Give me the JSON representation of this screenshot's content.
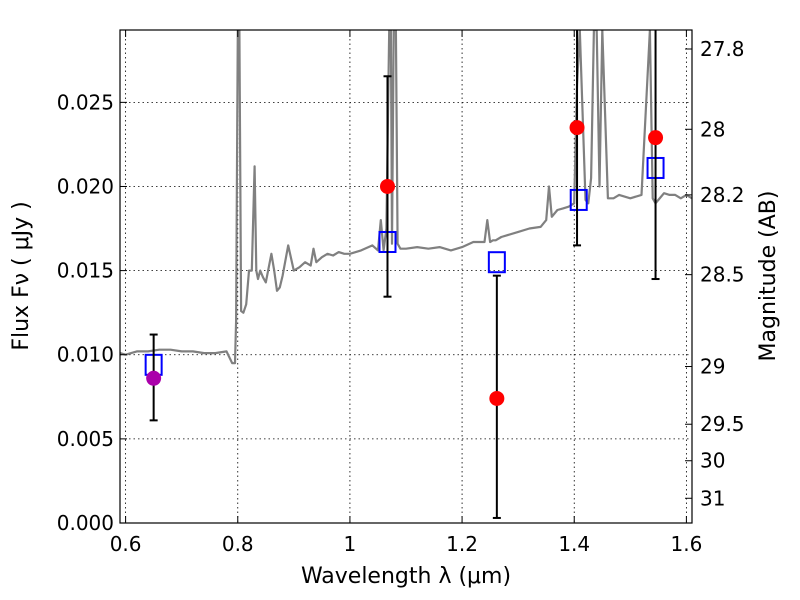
{
  "chart_data": {
    "type": "scatter",
    "xlabel": "Wavelength  λ (μm)",
    "ylabel": "Flux  Fν  ( μJy )",
    "y2label": "Magnitude (AB)",
    "xlim": [
      0.59,
      1.61
    ],
    "ylim": [
      0.0,
      0.0293
    ],
    "grid": true,
    "x_ticks": [
      {
        "value": 0.6,
        "label": "0.6"
      },
      {
        "value": 0.8,
        "label": "0.8"
      },
      {
        "value": 1.0,
        "label": "1"
      },
      {
        "value": 1.2,
        "label": "1.2"
      },
      {
        "value": 1.4,
        "label": "1.4"
      },
      {
        "value": 1.6,
        "label": "1.6"
      }
    ],
    "y_ticks": [
      {
        "value": 0.0,
        "label": "0.000"
      },
      {
        "value": 0.005,
        "label": "0.005"
      },
      {
        "value": 0.01,
        "label": "0.010"
      },
      {
        "value": 0.015,
        "label": "0.015"
      },
      {
        "value": 0.02,
        "label": "0.020"
      },
      {
        "value": 0.025,
        "label": "0.025"
      }
    ],
    "y2_ticks": [
      {
        "flux": 0.02817,
        "label": "27.8"
      },
      {
        "flux": 0.0234,
        "label": "28"
      },
      {
        "flux": 0.0195,
        "label": "28.2"
      },
      {
        "flux": 0.01476,
        "label": "28.5"
      },
      {
        "flux": 0.0093,
        "label": "29"
      },
      {
        "flux": 0.00587,
        "label": "29.5"
      },
      {
        "flux": 0.0037,
        "label": "30"
      },
      {
        "flux": 0.00147,
        "label": "31"
      }
    ],
    "series": [
      {
        "kind": "line",
        "color": "#808080",
        "x": [
          0.59,
          0.6,
          0.61,
          0.62,
          0.64,
          0.66,
          0.68,
          0.7,
          0.72,
          0.74,
          0.76,
          0.78,
          0.79,
          0.795,
          0.797,
          0.8,
          0.803,
          0.806,
          0.81,
          0.815,
          0.82,
          0.825,
          0.83,
          0.833,
          0.836,
          0.84,
          0.845,
          0.85,
          0.86,
          0.865,
          0.87,
          0.875,
          0.88,
          0.89,
          0.9,
          0.91,
          0.92,
          0.93,
          0.935,
          0.94,
          0.95,
          0.96,
          0.97,
          0.98,
          0.99,
          1.0,
          1.02,
          1.04,
          1.05,
          1.055,
          1.06,
          1.065,
          1.07,
          1.073,
          1.075,
          1.078,
          1.082,
          1.085,
          1.09,
          1.1,
          1.12,
          1.14,
          1.16,
          1.18,
          1.2,
          1.22,
          1.24,
          1.245,
          1.25,
          1.255,
          1.26,
          1.27,
          1.28,
          1.3,
          1.32,
          1.34,
          1.35,
          1.355,
          1.36,
          1.37,
          1.38,
          1.39,
          1.4,
          1.405,
          1.41,
          1.42,
          1.425,
          1.43,
          1.435,
          1.44,
          1.445,
          1.45,
          1.46,
          1.47,
          1.48,
          1.5,
          1.52,
          1.535,
          1.54,
          1.545,
          1.55,
          1.56,
          1.57,
          1.58,
          1.59,
          1.6,
          1.61
        ],
        "y": [
          0.0101,
          0.01,
          0.0101,
          0.0102,
          0.0102,
          0.0103,
          0.0103,
          0.0102,
          0.0102,
          0.0101,
          0.0101,
          0.0102,
          0.0095,
          0.0095,
          0.012,
          0.0293,
          0.0293,
          0.0126,
          0.0125,
          0.013,
          0.015,
          0.015,
          0.0212,
          0.015,
          0.0145,
          0.015,
          0.0146,
          0.0143,
          0.016,
          0.015,
          0.0138,
          0.014,
          0.0147,
          0.0165,
          0.015,
          0.0152,
          0.0155,
          0.0153,
          0.0163,
          0.0155,
          0.0158,
          0.016,
          0.0159,
          0.0161,
          0.016,
          0.016,
          0.0162,
          0.0165,
          0.0162,
          0.018,
          0.0162,
          0.0175,
          0.0293,
          0.0293,
          0.0166,
          0.0293,
          0.0293,
          0.0166,
          0.0163,
          0.0163,
          0.0164,
          0.0163,
          0.0164,
          0.0162,
          0.0164,
          0.0167,
          0.0167,
          0.018,
          0.0167,
          0.0168,
          0.0168,
          0.017,
          0.0171,
          0.0173,
          0.0175,
          0.0176,
          0.018,
          0.02,
          0.0182,
          0.0186,
          0.0187,
          0.0188,
          0.019,
          0.026,
          0.0293,
          0.0192,
          0.019,
          0.0205,
          0.0293,
          0.0293,
          0.02,
          0.0293,
          0.0193,
          0.0193,
          0.0195,
          0.0193,
          0.0195,
          0.0293,
          0.0193,
          0.019,
          0.0192,
          0.0196,
          0.0195,
          0.0195,
          0.0193,
          0.0195,
          0.0193
        ]
      },
      {
        "kind": "markers",
        "marker": "open-square",
        "color": "#0000ff",
        "x": [
          0.65,
          1.067,
          1.262,
          1.408,
          1.545
        ],
        "y": [
          0.0094,
          0.0167,
          0.0155,
          0.0192,
          0.0211
        ]
      },
      {
        "kind": "markers",
        "marker": "filled-circle",
        "color": "#ff0000",
        "x": [
          1.067,
          1.262,
          1.405,
          1.545
        ],
        "y": [
          0.02,
          0.0074,
          0.0235,
          0.0229
        ],
        "err_low": [
          0.01345,
          0.0003,
          0.0165,
          0.0145
        ],
        "err_high": [
          0.02655,
          0.0147,
          0.0293,
          0.0293
        ]
      },
      {
        "kind": "markers",
        "marker": "filled-circle",
        "color": "#aa00aa",
        "x": [
          0.65
        ],
        "y": [
          0.0086
        ],
        "err_low": [
          0.0061
        ],
        "err_high": [
          0.0112
        ]
      }
    ]
  }
}
